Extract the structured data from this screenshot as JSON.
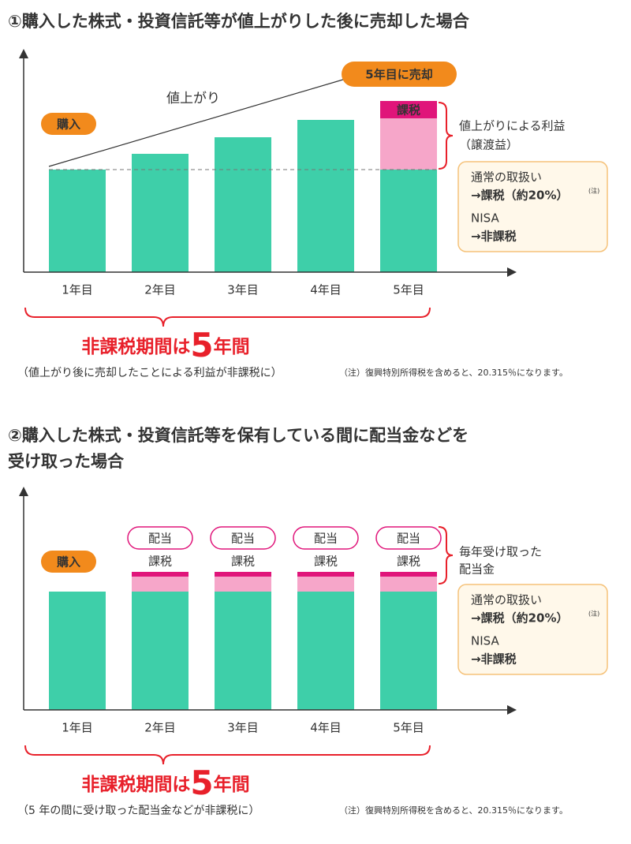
{
  "section1": {
    "title": "①購入した株式・投資信託等が値上がりした後に売却した場合",
    "sell_label": "5年目に売却",
    "rise_label": "値上がり",
    "buy_label": "購入",
    "tax_tag": "課税",
    "gain_label": [
      "値上がりによる利益",
      "（譲渡益）"
    ],
    "box": {
      "line1": "通常の取扱い",
      "line2": "→課税（約20%）",
      "note_mark": "(注)",
      "line3": "NISA",
      "line4": "→非課税"
    },
    "years": [
      "1年目",
      "2年目",
      "3年目",
      "4年目",
      "5年目"
    ],
    "period": {
      "prefix": "非課税期間は",
      "number": "5",
      "suffix": "年間"
    },
    "period_note": "（値上がり後に売却したことによる利益が非課税に）",
    "footnote": "（注）復興特別所得税を含めると、20.315％になります。"
  },
  "section2": {
    "title": [
      "②購入した株式・投資信託等を保有している間に配当金などを",
      "受け取った場合"
    ],
    "buy_label": "購入",
    "dividend_tag": "配当",
    "tax_tag": "課税",
    "dividend_label": [
      "毎年受け取った",
      "配当金"
    ],
    "box": {
      "line1": "通常の取扱い",
      "line2": "→課税（約20%）",
      "note_mark": "(注)",
      "line3": "NISA",
      "line4": "→非課税"
    },
    "years": [
      "1年目",
      "2年目",
      "3年目",
      "4年目",
      "5年目"
    ],
    "period": {
      "prefix": "非課税期間は",
      "number": "5",
      "suffix": "年間"
    },
    "period_note": "（5 年の間に受け取った配当金などが非課税に）",
    "footnote": "（注）復興特別所得税を含めると、20.315％になります。"
  }
}
